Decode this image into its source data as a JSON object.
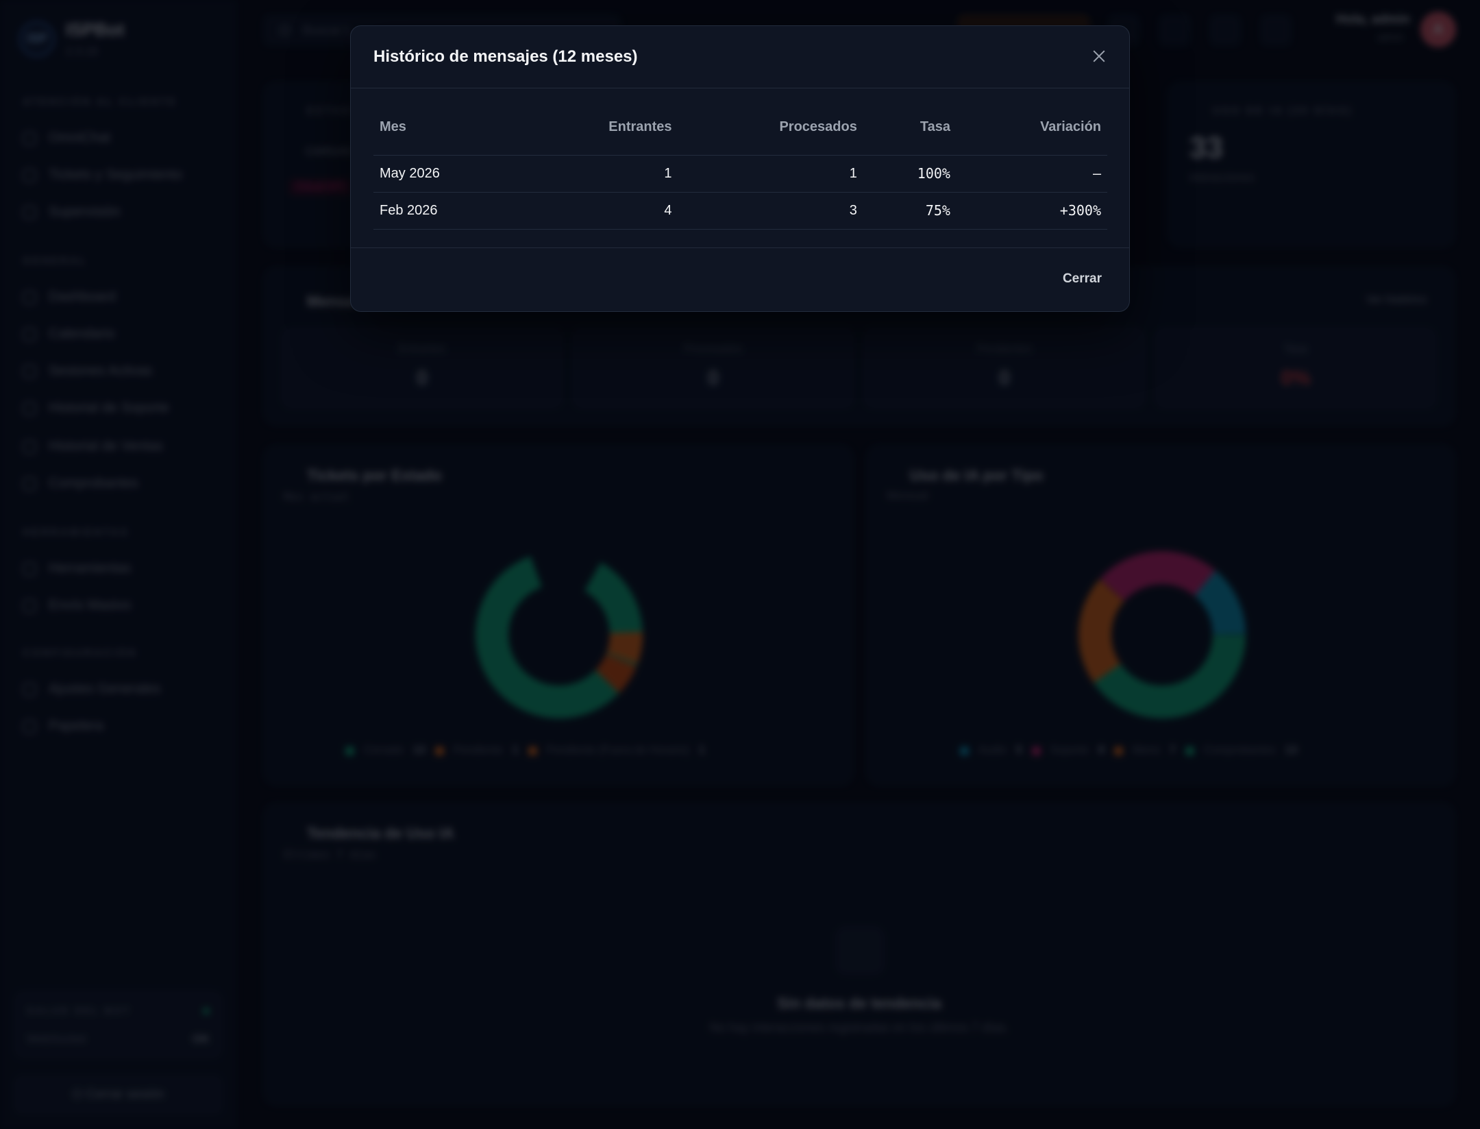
{
  "app": {
    "name": "ISPBot",
    "version": "2.3.16",
    "logo_text": "ISP"
  },
  "sidebar": {
    "sections": [
      {
        "title": "ATENCIÓN AL CLIENTE",
        "items": [
          "OmniChat",
          "Tickets y Seguimiento",
          "Supervisión"
        ]
      },
      {
        "title": "GENERAL",
        "items": [
          "Dashboard",
          "Calendario",
          "Sesiones Activas",
          "Historial de Soporte",
          "Historial de Ventas",
          "Comprobantes"
        ]
      },
      {
        "title": "HERRAMIENTAS",
        "items": [
          "Herramientas",
          "Envío Masivo"
        ]
      },
      {
        "title": "CONFIGURACIÓN",
        "items": [
          "Ajustes Generales",
          "Papelera"
        ]
      }
    ],
    "health": {
      "title": "SALUD DEL BOT",
      "label": "WebSocket",
      "value": "OK"
    },
    "logout_label": "Cerrar sesión"
  },
  "topbar": {
    "search_placeholder": "Buscar t...",
    "greeting": "Hola, admin",
    "role": "admin",
    "avatar_initial": "A"
  },
  "dashboard": {
    "status_card": {
      "title": "ESTADO",
      "chip": "CARGAN",
      "badge": "Cloud API"
    },
    "ia_usage_card": {
      "title": "USO DE IA (30 DÍAS)",
      "value": "33",
      "sub": "interacciones"
    },
    "messages_card": {
      "title": "Mensa",
      "link": "Ver histórico",
      "stats": [
        {
          "label": "Entrantes",
          "value": "0"
        },
        {
          "label": "Procesados",
          "value": "0"
        },
        {
          "label": "Pendientes",
          "value": "0"
        },
        {
          "label": "Tasa",
          "value": "0%"
        }
      ]
    },
    "tickets_card": {
      "title": "Tickets por Estado",
      "subtitle": "Mes actual",
      "legend": [
        {
          "label": "Cerrado",
          "value": "13",
          "color": "#10b981"
        },
        {
          "label": "Pendiente",
          "value": "1",
          "color": "#f97316"
        },
        {
          "label": "Pendiente (Fuera de Horario)",
          "value": "1",
          "color": "#f97316"
        }
      ]
    },
    "ia_type_card": {
      "title": "Uso de IA por Tipo",
      "subtitle": "Mensual",
      "legend": [
        {
          "label": "Audio",
          "value": "5",
          "color": "#0ea5c9"
        },
        {
          "label": "Soporte",
          "value": "8",
          "color": "#db2777"
        },
        {
          "label": "Menú",
          "value": "7",
          "color": "#f97316"
        },
        {
          "label": "Comprobantes",
          "value": "13",
          "color": "#10b981"
        }
      ]
    },
    "trend_card": {
      "title": "Tendencia de Uso IA",
      "subtitle": "Últimos 7 días",
      "empty_title": "Sin datos de tendencia",
      "empty_text": "No hay interacciones registradas en los últimos 7 días."
    }
  },
  "modal": {
    "title": "Histórico de mensajes (12 meses)",
    "columns": [
      "Mes",
      "Entrantes",
      "Procesados",
      "Tasa",
      "Variación"
    ],
    "rows": [
      {
        "mes": "May 2026",
        "entrantes": "1",
        "procesados": "1",
        "tasa": "100%",
        "variacion": "—"
      },
      {
        "mes": "Feb 2026",
        "entrantes": "4",
        "procesados": "3",
        "tasa": "75%",
        "variacion": "+300%"
      }
    ],
    "close_label": "Cerrar"
  },
  "colors": {
    "positive": "#10b981",
    "negative": "#ef4444",
    "accent": "#14b8a6"
  }
}
